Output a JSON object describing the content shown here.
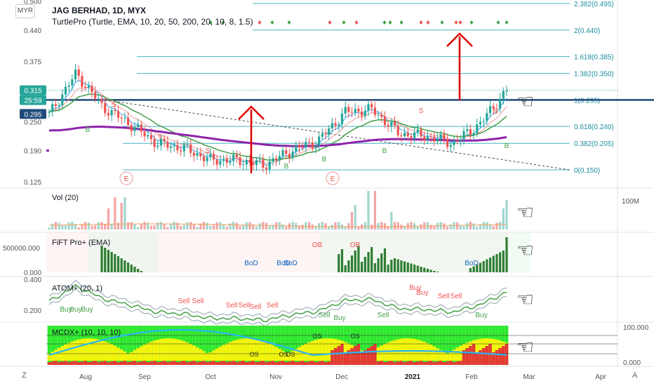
{
  "header": {
    "currency": "MYR",
    "symbol_line": "JAG BERHAD, 1D, MYX",
    "indicator_line": "TurtlePro (Turtle, EMA, 10, 20, 50, 200, 20, 10, 8, 1.5)"
  },
  "price_axis": {
    "ticks": [
      "0.500",
      "0.440",
      "0.375",
      "0.250",
      "0.190",
      "0.125"
    ],
    "tick_values": [
      0.5,
      0.44,
      0.375,
      0.25,
      0.19,
      0.125
    ],
    "badges": [
      {
        "text": "0.315",
        "color": "#26a69a"
      },
      {
        "text": "25:59",
        "color": "#26a69a"
      },
      {
        "text": "0.295",
        "color": "#1e4b7a"
      }
    ]
  },
  "fib_levels": [
    {
      "label": "2.382(0.495)",
      "value": 0.495
    },
    {
      "label": "2(0.440)",
      "value": 0.44
    },
    {
      "label": "1.618(0.385)",
      "value": 0.385
    },
    {
      "label": "1.382(0.350)",
      "value": 0.35
    },
    {
      "label": "1(0.295)",
      "value": 0.295
    },
    {
      "label": "0.618(0.240)",
      "value": 0.24
    },
    {
      "label": "0.382(0.205)",
      "value": 0.205
    },
    {
      "label": "0(0.150)",
      "value": 0.15
    }
  ],
  "x_axis": {
    "labels": [
      "Aug",
      "Sep",
      "Oct",
      "Nov",
      "Dec",
      "2021",
      "Feb",
      "Mar",
      "Apr"
    ]
  },
  "panes": {
    "vol": {
      "label": "Vol (20)",
      "axis": "100M"
    },
    "fift": {
      "label": "FiFT Pro+ (EMA)",
      "axis_top": "500000.000",
      "axis_bottom": "0.000",
      "markers": [
        "BoD",
        "BoD",
        "BoD",
        "BoD",
        "OB",
        "OB"
      ]
    },
    "atom": {
      "label": "ATOM+ (20, 1)",
      "axis_top": "0.400",
      "axis_bottom": "0.200",
      "signals": [
        "Buy",
        "Buy",
        "Buy",
        "Sell",
        "Sell",
        "Sell",
        "Sell",
        "Sell",
        "Sell",
        "Sell",
        "Buy",
        "Buy",
        "Sell",
        "Buy",
        "Sell",
        "Sell",
        "Buy"
      ]
    },
    "mcdx": {
      "label": "MCDX+ (10, 10, 10)",
      "axis_top": "100.000",
      "axis_bottom": "0.000",
      "markers": [
        "OS",
        "OS",
        "OS",
        "OS",
        "OS"
      ]
    }
  },
  "chart_signals": {
    "labels": [
      "B",
      "S",
      "S",
      "S",
      "B",
      "B",
      "S",
      "B",
      "B",
      "S",
      "E",
      "E"
    ]
  },
  "corner_buttons": {
    "left": "Z",
    "right": "A"
  },
  "chart_data": {
    "type": "candlestick",
    "title": "JAG BERHAD, 1D, MYX",
    "y_range": [
      0.115,
      0.51
    ],
    "x_categories": [
      "Aug",
      "Sep",
      "Oct",
      "Nov",
      "Dec",
      "2021",
      "Feb",
      "Mar",
      "Apr"
    ],
    "last_price": 0.315,
    "resistance_line": 0.295,
    "close_path": [
      [
        "Jul end",
        0.265
      ],
      [
        "Aug early",
        0.35
      ],
      [
        "Aug mid",
        0.28
      ],
      [
        "Aug end",
        0.245
      ],
      [
        "Sep mid",
        0.205
      ],
      [
        "Sep end",
        0.195
      ],
      [
        "Oct mid",
        0.17
      ],
      [
        "Oct end",
        0.17
      ],
      [
        "Nov mid",
        0.16
      ],
      [
        "Nov end",
        0.19
      ],
      [
        "Dec mid",
        0.21
      ],
      [
        "Dec end",
        0.27
      ],
      [
        "Jan early",
        0.275
      ],
      [
        "Jan mid",
        0.225
      ],
      [
        "Jan end",
        0.22
      ],
      [
        "Feb early",
        0.205
      ],
      [
        "Feb mid",
        0.245
      ],
      [
        "Feb end",
        0.315
      ]
    ]
  }
}
